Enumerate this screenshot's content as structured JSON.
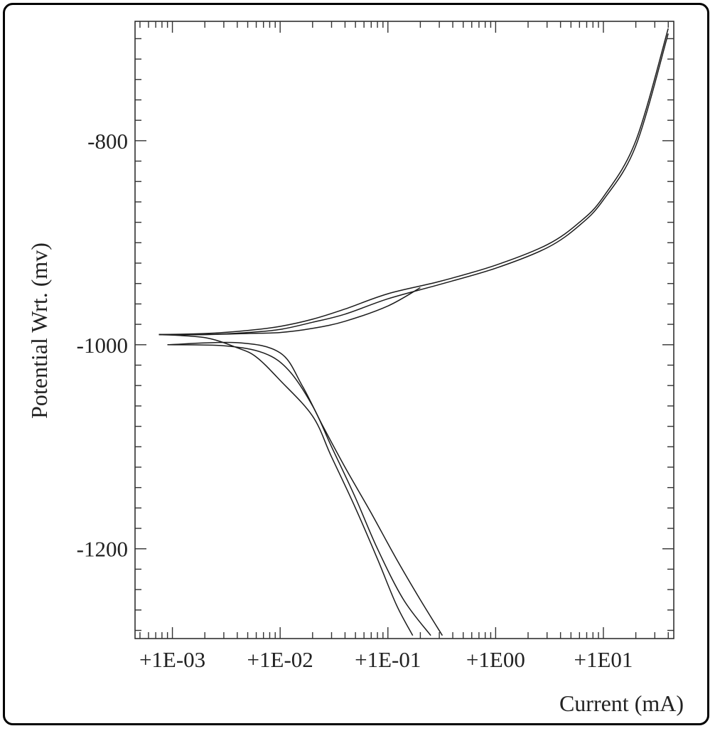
{
  "chart_data": {
    "type": "line",
    "title": "",
    "xlabel": "Current (mA)",
    "ylabel": "Potential Wrt. (mv)",
    "x_scale": "log",
    "xlim": [
      0.00045,
      45
    ],
    "ylim": [
      -1288,
      -683
    ],
    "x_ticks": [
      {
        "value": 0.001,
        "label": "+1E-03"
      },
      {
        "value": 0.01,
        "label": "+1E-02"
      },
      {
        "value": 0.1,
        "label": "+1E-01"
      },
      {
        "value": 1,
        "label": "+1E00"
      },
      {
        "value": 10,
        "label": "+1E01"
      }
    ],
    "y_ticks": [
      {
        "value": -800,
        "label": "-800"
      },
      {
        "value": -1000,
        "label": "-1000"
      },
      {
        "value": -1200,
        "label": "-1200"
      }
    ],
    "grid": false,
    "series": [
      {
        "name": "",
        "x": [
          0.00075,
          0.002,
          0.005,
          0.01,
          0.02,
          0.04,
          0.1,
          0.3,
          1,
          3,
          6,
          10,
          20,
          40
        ],
        "y": [
          -990,
          -989,
          -986,
          -982,
          -975,
          -965,
          -950,
          -938,
          -922,
          -902,
          -880,
          -855,
          -800,
          -690
        ]
      },
      {
        "name": "",
        "x": [
          0.00075,
          0.002,
          0.005,
          0.01,
          0.02,
          0.04,
          0.1,
          0.3,
          1,
          3,
          6,
          10,
          20,
          40
        ],
        "y": [
          -990,
          -990,
          -988,
          -985,
          -978,
          -970,
          -955,
          -941,
          -925,
          -905,
          -883,
          -858,
          -805,
          -695
        ]
      },
      {
        "name": "",
        "x": [
          0.00075,
          0.002,
          0.005,
          0.01,
          0.02,
          0.04,
          0.1,
          0.2
        ],
        "y": [
          -990,
          -990,
          -989,
          -988,
          -984,
          -977,
          -962,
          -944
        ]
      },
      {
        "name": "",
        "x": [
          0.00075,
          0.002,
          0.004,
          0.006,
          0.01,
          0.02,
          0.03,
          0.05,
          0.08,
          0.12,
          0.17
        ],
        "y": [
          -990,
          -993,
          -1003,
          -1012,
          -1035,
          -1070,
          -1110,
          -1160,
          -1210,
          -1255,
          -1285
        ]
      },
      {
        "name": "",
        "x": [
          0.0009,
          0.003,
          0.007,
          0.012,
          0.02,
          0.03,
          0.05,
          0.08,
          0.14,
          0.25
        ],
        "y": [
          -1000,
          -1001,
          -1008,
          -1025,
          -1060,
          -1100,
          -1150,
          -1200,
          -1250,
          -1285
        ]
      },
      {
        "name": "",
        "x": [
          0.0009,
          0.004,
          0.01,
          0.016,
          0.025,
          0.04,
          0.07,
          0.12,
          0.2,
          0.32
        ],
        "y": [
          -1000,
          -998,
          -1008,
          -1040,
          -1080,
          -1120,
          -1165,
          -1210,
          -1250,
          -1285
        ]
      }
    ]
  }
}
